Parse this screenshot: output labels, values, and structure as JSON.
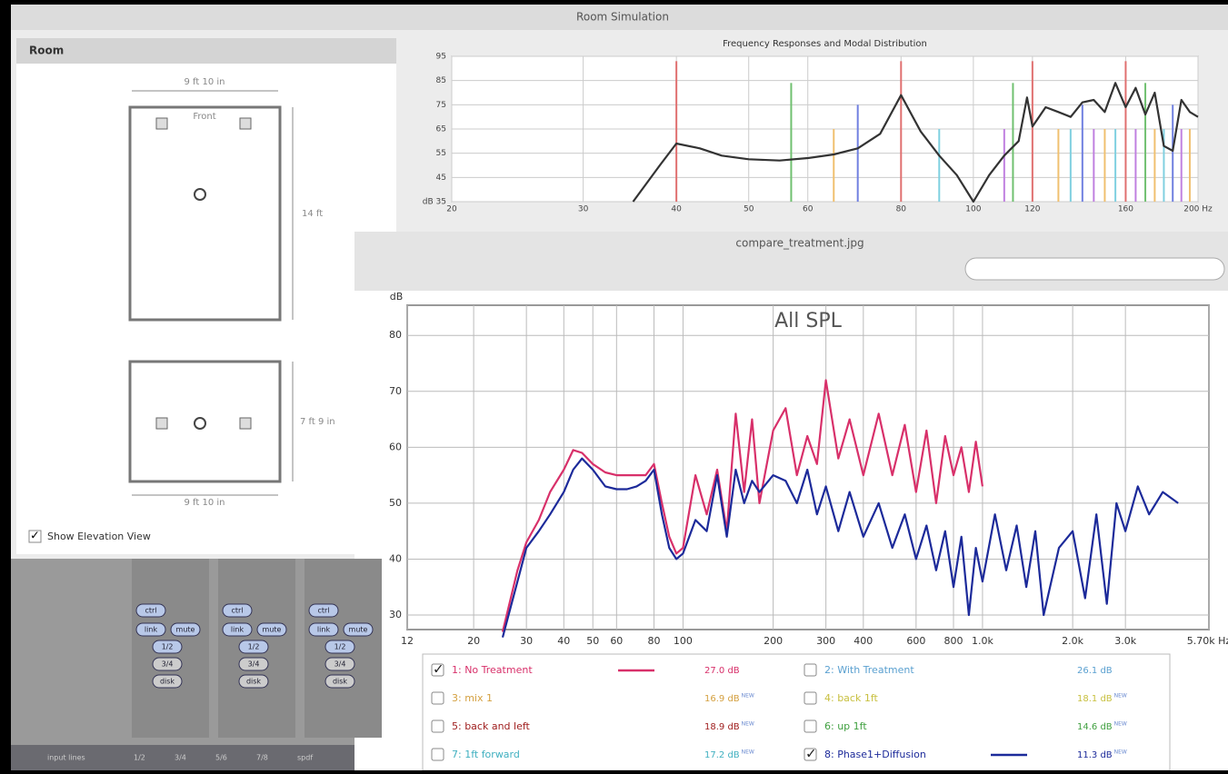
{
  "room_window": {
    "title": "Room Simulation",
    "panel_title": "Room",
    "plan": {
      "width": "9 ft 10 in",
      "front": "Front",
      "depth": "14 ft"
    },
    "elevation": {
      "height": "7 ft 9 in",
      "width": "9 ft 10 in"
    },
    "show_elevation": {
      "label": "Show Elevation View",
      "checked": true
    }
  },
  "mixer": {
    "buttons": [
      "ctrl",
      "link",
      "mute",
      "1/2",
      "3/4",
      "disk"
    ],
    "footer": [
      "input lines",
      "1/2",
      "3/4",
      "5/6",
      "7/8",
      "spdf"
    ]
  },
  "preview_window": {
    "title": "compare_treatment.jpg"
  },
  "chart_data": [
    {
      "type": "line",
      "title": "Frequency Responses and Modal Distribution",
      "log_x": true,
      "grid": true,
      "xlim": [
        20,
        200
      ],
      "ylim": [
        35,
        95
      ],
      "xticks": [
        20,
        30,
        40,
        50,
        60,
        80,
        100,
        120,
        160,
        {
          "value": 200,
          "label": "200 Hz"
        }
      ],
      "yticks": [
        {
          "value": 35,
          "label": "dB 35"
        },
        45,
        55,
        65,
        75,
        85,
        95
      ],
      "modes": [
        {
          "color": "#e07070",
          "x": [
            40,
            80,
            120,
            160
          ],
          "values": [
            93,
            93,
            93,
            93
          ]
        },
        {
          "color": "#70c070",
          "x": [
            57,
            113,
            170
          ],
          "values": [
            84,
            84,
            84
          ]
        },
        {
          "color": "#7080e0",
          "x": [
            70,
            140,
            185
          ],
          "values": [
            75,
            75,
            75
          ]
        },
        {
          "color": "#f0c070",
          "x": [
            65,
            130,
            150,
            175,
            195
          ],
          "values": [
            65,
            65,
            65,
            65,
            65
          ]
        },
        {
          "color": "#c080e0",
          "x": [
            110,
            145,
            165,
            190
          ],
          "values": [
            65,
            65,
            65,
            65
          ]
        },
        {
          "color": "#80d0e0",
          "x": [
            90,
            135,
            155,
            180
          ],
          "values": [
            65,
            65,
            65,
            65
          ]
        }
      ],
      "series": [
        {
          "color": "#333333",
          "x": [
            35,
            38,
            40,
            43,
            46,
            50,
            55,
            60,
            65,
            70,
            75,
            80,
            85,
            90,
            95,
            100,
            105,
            110,
            115,
            118,
            120,
            125,
            130,
            135,
            140,
            145,
            150,
            155,
            160,
            165,
            170,
            175,
            180,
            185,
            190,
            195,
            200
          ],
          "values": [
            35,
            50,
            59,
            57,
            54,
            52.5,
            52,
            53,
            54.5,
            57,
            63,
            79,
            64,
            54,
            46,
            35,
            46,
            54,
            60,
            78,
            66,
            74,
            72,
            70,
            76,
            77,
            72,
            84,
            74,
            82,
            71,
            80,
            58,
            56,
            77,
            72,
            70
          ]
        }
      ]
    },
    {
      "type": "line",
      "title": "All SPL",
      "y_label": "dB",
      "log_x": true,
      "grid": true,
      "xlim": [
        12,
        5700
      ],
      "ylim": [
        27.4,
        85.4
      ],
      "xticks": [
        12,
        20,
        30,
        40,
        50,
        60,
        80,
        100,
        200,
        300,
        400,
        600,
        800,
        {
          "value": 1000,
          "label": "1.0k"
        },
        {
          "value": 2000,
          "label": "2.0k"
        },
        {
          "value": 3000,
          "label": "3.0k"
        },
        {
          "value": 5700,
          "label": "5.70k Hz"
        }
      ],
      "yticks": [
        30,
        40,
        50,
        60,
        70,
        80
      ],
      "x": [
        25,
        28,
        30,
        33,
        36,
        40,
        43,
        46,
        50,
        55,
        60,
        65,
        70,
        75,
        80,
        85,
        90,
        95,
        100,
        110,
        120,
        130,
        140,
        150,
        160,
        170,
        180,
        200,
        220,
        240,
        260,
        280,
        300,
        330,
        360,
        400,
        450,
        500,
        550,
        600,
        650,
        700,
        750,
        800,
        850,
        900,
        950,
        1000,
        1100,
        1200,
        1300,
        1400,
        1500,
        1600,
        1800,
        2000,
        2200,
        2400,
        2600,
        2800,
        3000,
        3300,
        3600,
        4000,
        4500
      ],
      "series": [
        {
          "name": "1: No Treatment",
          "color": "#d8306a",
          "checked": true,
          "level": "27.0 dB",
          "values": [
            27,
            38,
            43,
            47,
            52,
            56,
            59.5,
            59,
            57,
            55.5,
            55,
            55,
            55,
            55,
            57,
            50,
            44,
            41,
            42,
            55,
            48,
            56,
            45,
            66,
            52,
            65,
            50,
            63,
            67,
            55,
            62,
            57,
            72,
            58,
            65,
            55,
            66,
            55,
            64,
            52,
            63,
            50,
            62,
            55,
            60,
            52,
            61,
            53,
            null,
            null,
            null,
            null,
            null,
            null,
            null,
            null,
            null,
            null,
            null,
            null,
            null,
            null,
            null,
            null,
            null
          ]
        },
        {
          "name": "2: With Treatment",
          "color": "#5aa0d0",
          "checked": false,
          "level": "26.1 dB"
        },
        {
          "name": "3: mix 1",
          "color": "#d4a040",
          "checked": false,
          "level": "16.9 dB",
          "badge": "NEW"
        },
        {
          "name": "4: back 1ft",
          "color": "#c8c040",
          "checked": false,
          "level": "18.1 dB",
          "badge": "NEW"
        },
        {
          "name": "5: back and left",
          "color": "#a02020",
          "checked": false,
          "level": "18.9 dB",
          "badge": "NEW"
        },
        {
          "name": "6: up 1ft",
          "color": "#40a040",
          "checked": false,
          "level": "14.6 dB",
          "badge": "NEW"
        },
        {
          "name": "7: 1ft forward",
          "color": "#40b0c0",
          "checked": false,
          "level": "17.2 dB",
          "badge": "NEW"
        },
        {
          "name": "8: Phase1+Diffusion",
          "color": "#1c2a9a",
          "checked": true,
          "level": "11.3 dB",
          "badge": "NEW",
          "values": [
            26,
            36,
            42,
            45,
            48,
            52,
            56,
            58,
            56,
            53,
            52.5,
            52.5,
            53,
            54,
            56,
            48,
            42,
            40,
            41,
            47,
            45,
            55,
            44,
            56,
            50,
            54,
            52,
            55,
            54,
            50,
            56,
            48,
            53,
            45,
            52,
            44,
            50,
            42,
            48,
            40,
            46,
            38,
            45,
            35,
            44,
            30,
            42,
            36,
            48,
            38,
            46,
            35,
            45,
            30,
            42,
            45,
            33,
            48,
            32,
            50,
            45,
            53,
            48,
            52,
            50
          ]
        }
      ]
    }
  ]
}
